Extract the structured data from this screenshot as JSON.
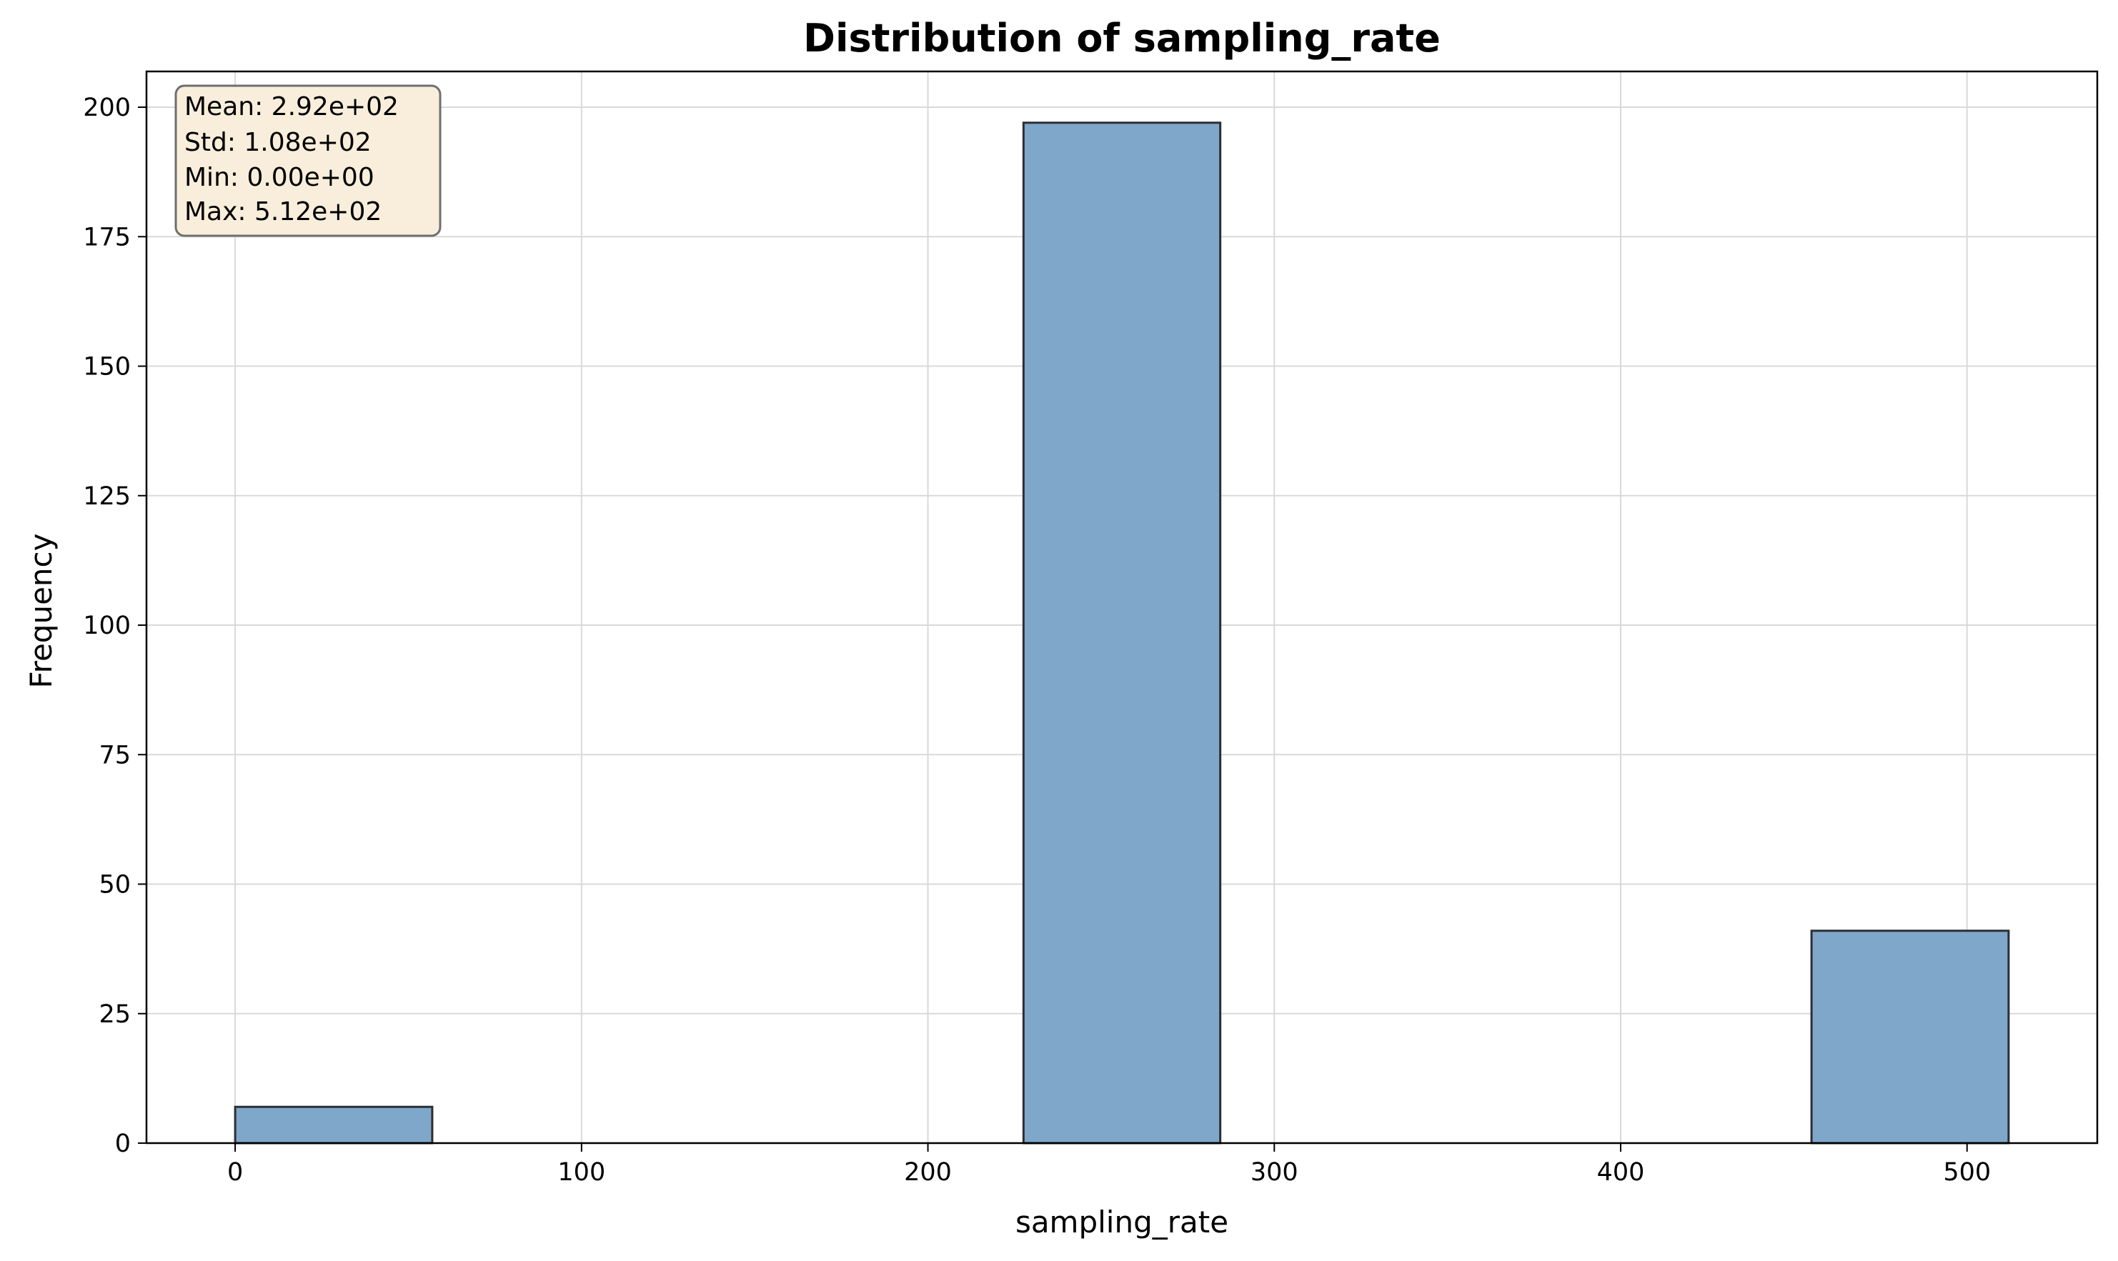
{
  "chart_data": {
    "type": "bar",
    "title": "Distribution of sampling_rate",
    "xlabel": "sampling_rate",
    "ylabel": "Frequency",
    "xlim": [
      -25.6,
      537.6
    ],
    "ylim": [
      0,
      206.9
    ],
    "xticks": [
      0,
      100,
      200,
      300,
      400,
      500
    ],
    "yticks": [
      0,
      25,
      50,
      75,
      100,
      125,
      150,
      175,
      200
    ],
    "grid": true,
    "bar_color": "#7ea7ca",
    "bars": [
      {
        "x0": 0,
        "x1": 56.9,
        "value": 7
      },
      {
        "x0": 56.9,
        "x1": 113.8,
        "value": 0
      },
      {
        "x0": 113.8,
        "x1": 170.7,
        "value": 0
      },
      {
        "x0": 170.7,
        "x1": 227.6,
        "value": 0
      },
      {
        "x0": 227.6,
        "x1": 284.4,
        "value": 197
      },
      {
        "x0": 284.4,
        "x1": 341.3,
        "value": 0
      },
      {
        "x0": 341.3,
        "x1": 398.2,
        "value": 0
      },
      {
        "x0": 398.2,
        "x1": 455.1,
        "value": 0
      },
      {
        "x0": 455.1,
        "x1": 512,
        "value": 41
      }
    ],
    "stats_box": {
      "position": "top-left",
      "lines": [
        "Mean: 2.92e+02",
        "Std: 1.08e+02",
        "Min: 0.00e+00",
        "Max: 5.12e+02"
      ]
    }
  }
}
